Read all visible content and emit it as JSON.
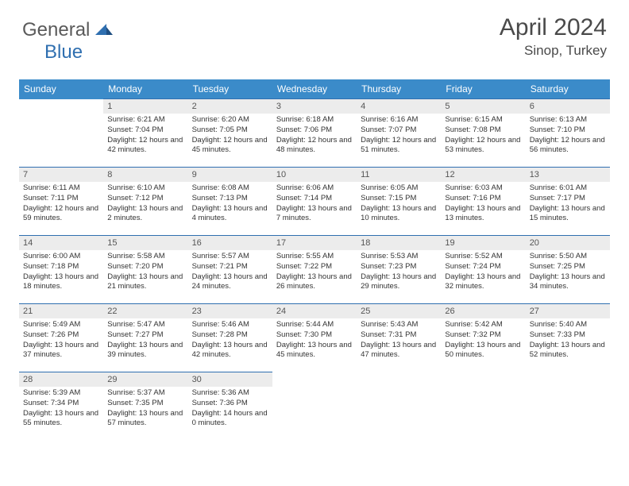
{
  "brand": {
    "text1": "General",
    "text2": "Blue"
  },
  "title": "April 2024",
  "location": "Sinop, Turkey",
  "colors": {
    "header_bg": "#3b8bc9",
    "border": "#2f6fb0",
    "daynum_bg": "#ececec",
    "text": "#333333"
  },
  "day_headers": [
    "Sunday",
    "Monday",
    "Tuesday",
    "Wednesday",
    "Thursday",
    "Friday",
    "Saturday"
  ],
  "weeks": [
    [
      null,
      {
        "n": "1",
        "sr": "6:21 AM",
        "ss": "7:04 PM",
        "dl": "12 hours and 42 minutes."
      },
      {
        "n": "2",
        "sr": "6:20 AM",
        "ss": "7:05 PM",
        "dl": "12 hours and 45 minutes."
      },
      {
        "n": "3",
        "sr": "6:18 AM",
        "ss": "7:06 PM",
        "dl": "12 hours and 48 minutes."
      },
      {
        "n": "4",
        "sr": "6:16 AM",
        "ss": "7:07 PM",
        "dl": "12 hours and 51 minutes."
      },
      {
        "n": "5",
        "sr": "6:15 AM",
        "ss": "7:08 PM",
        "dl": "12 hours and 53 minutes."
      },
      {
        "n": "6",
        "sr": "6:13 AM",
        "ss": "7:10 PM",
        "dl": "12 hours and 56 minutes."
      }
    ],
    [
      {
        "n": "7",
        "sr": "6:11 AM",
        "ss": "7:11 PM",
        "dl": "12 hours and 59 minutes."
      },
      {
        "n": "8",
        "sr": "6:10 AM",
        "ss": "7:12 PM",
        "dl": "13 hours and 2 minutes."
      },
      {
        "n": "9",
        "sr": "6:08 AM",
        "ss": "7:13 PM",
        "dl": "13 hours and 4 minutes."
      },
      {
        "n": "10",
        "sr": "6:06 AM",
        "ss": "7:14 PM",
        "dl": "13 hours and 7 minutes."
      },
      {
        "n": "11",
        "sr": "6:05 AM",
        "ss": "7:15 PM",
        "dl": "13 hours and 10 minutes."
      },
      {
        "n": "12",
        "sr": "6:03 AM",
        "ss": "7:16 PM",
        "dl": "13 hours and 13 minutes."
      },
      {
        "n": "13",
        "sr": "6:01 AM",
        "ss": "7:17 PM",
        "dl": "13 hours and 15 minutes."
      }
    ],
    [
      {
        "n": "14",
        "sr": "6:00 AM",
        "ss": "7:18 PM",
        "dl": "13 hours and 18 minutes."
      },
      {
        "n": "15",
        "sr": "5:58 AM",
        "ss": "7:20 PM",
        "dl": "13 hours and 21 minutes."
      },
      {
        "n": "16",
        "sr": "5:57 AM",
        "ss": "7:21 PM",
        "dl": "13 hours and 24 minutes."
      },
      {
        "n": "17",
        "sr": "5:55 AM",
        "ss": "7:22 PM",
        "dl": "13 hours and 26 minutes."
      },
      {
        "n": "18",
        "sr": "5:53 AM",
        "ss": "7:23 PM",
        "dl": "13 hours and 29 minutes."
      },
      {
        "n": "19",
        "sr": "5:52 AM",
        "ss": "7:24 PM",
        "dl": "13 hours and 32 minutes."
      },
      {
        "n": "20",
        "sr": "5:50 AM",
        "ss": "7:25 PM",
        "dl": "13 hours and 34 minutes."
      }
    ],
    [
      {
        "n": "21",
        "sr": "5:49 AM",
        "ss": "7:26 PM",
        "dl": "13 hours and 37 minutes."
      },
      {
        "n": "22",
        "sr": "5:47 AM",
        "ss": "7:27 PM",
        "dl": "13 hours and 39 minutes."
      },
      {
        "n": "23",
        "sr": "5:46 AM",
        "ss": "7:28 PM",
        "dl": "13 hours and 42 minutes."
      },
      {
        "n": "24",
        "sr": "5:44 AM",
        "ss": "7:30 PM",
        "dl": "13 hours and 45 minutes."
      },
      {
        "n": "25",
        "sr": "5:43 AM",
        "ss": "7:31 PM",
        "dl": "13 hours and 47 minutes."
      },
      {
        "n": "26",
        "sr": "5:42 AM",
        "ss": "7:32 PM",
        "dl": "13 hours and 50 minutes."
      },
      {
        "n": "27",
        "sr": "5:40 AM",
        "ss": "7:33 PM",
        "dl": "13 hours and 52 minutes."
      }
    ],
    [
      {
        "n": "28",
        "sr": "5:39 AM",
        "ss": "7:34 PM",
        "dl": "13 hours and 55 minutes."
      },
      {
        "n": "29",
        "sr": "5:37 AM",
        "ss": "7:35 PM",
        "dl": "13 hours and 57 minutes."
      },
      {
        "n": "30",
        "sr": "5:36 AM",
        "ss": "7:36 PM",
        "dl": "14 hours and 0 minutes."
      },
      null,
      null,
      null,
      null
    ]
  ],
  "labels": {
    "sunrise": "Sunrise:",
    "sunset": "Sunset:",
    "daylight": "Daylight:"
  }
}
